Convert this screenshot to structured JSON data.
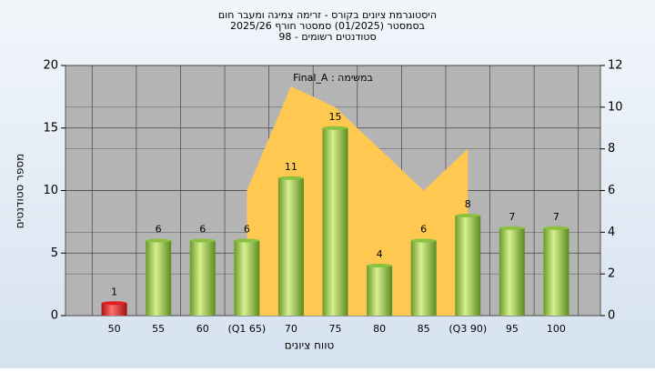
{
  "chart_data": {
    "type": "bar",
    "title": [
      "היסטוגרמת ציונים בקורס - זרימה צמיגה ומעבר חום",
      "בסמסטר  (01/2025)  סמסטר חורף 2025/26",
      "סטודנטים רשומים - 98"
    ],
    "x_label": "טווח ציונים",
    "y_label": "מספר סטודנטים",
    "categories": [
      "50",
      "55",
      "60",
      "(Q1 65)",
      "70",
      "75",
      "80",
      "85",
      "(Q3 90)",
      "95",
      "100"
    ],
    "values": [
      1,
      6,
      6,
      6,
      11,
      15,
      4,
      6,
      8,
      7,
      7
    ],
    "colors": [
      "#e02020",
      "#8cc040",
      "#8cc040",
      "#8cc040",
      "#8cc040",
      "#8cc040",
      "#8cc040",
      "#8cc040",
      "#8cc040",
      "#8cc040",
      "#8cc040"
    ],
    "area": {
      "name": "במשימה : Final_A",
      "color": "#ffc850",
      "axis": "y2",
      "values": [
        null,
        null,
        null,
        6,
        11,
        10,
        8,
        6,
        8,
        null,
        null
      ]
    },
    "ylim": [
      0,
      20
    ],
    "yticks": [
      0,
      5,
      10,
      15,
      20
    ],
    "y2lim": [
      0,
      12
    ],
    "y2ticks": [
      0,
      2,
      4,
      6,
      8,
      10,
      12
    ],
    "grid": true
  }
}
